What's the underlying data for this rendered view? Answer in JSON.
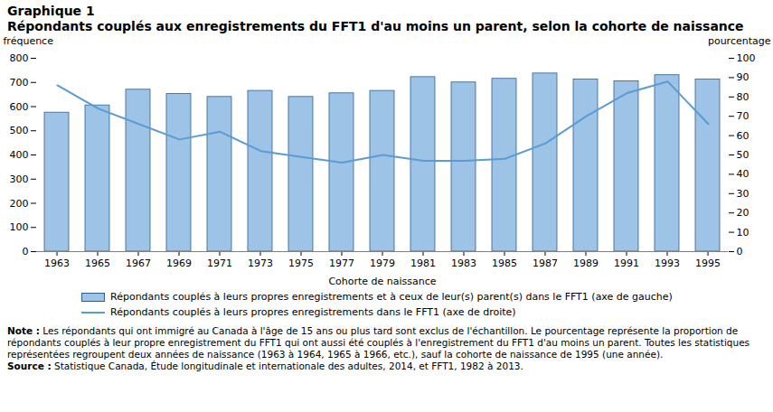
{
  "chart_data": {
    "type": "bar",
    "title": "Graphique 1",
    "subtitle": "Répondants couplés aux enregistrements du FFT1 d'au moins un parent, selon la cohorte de naissance",
    "x_label": "Cohorte de naissance",
    "y_label": "fréquence",
    "y2_label": "pourcentage",
    "categories": [
      "1963",
      "1965",
      "1967",
      "1969",
      "1971",
      "1973",
      "1975",
      "1977",
      "1979",
      "1981",
      "1983",
      "1985",
      "1987",
      "1989",
      "1991",
      "1993",
      "1995"
    ],
    "series": [
      {
        "name": "Répondants couplés à leurs propres enregistrements et à ceux de leur(s) parent(s) dans le FFT1 (axe de gauche)",
        "type": "bar",
        "color": "#9dc3e6",
        "values": [
          575,
          605,
          670,
          652,
          640,
          665,
          640,
          655,
          665,
          722,
          700,
          715,
          737,
          712,
          705,
          730,
          712
        ]
      },
      {
        "name": "Répondants couplés à leurs propres enregistrements dans le FFT1 (axe de droite)",
        "type": "line",
        "color": "#5b9bd5",
        "axis": "y2",
        "values": [
          86,
          74,
          66,
          58,
          62,
          52,
          49,
          46,
          50,
          47,
          47,
          48,
          56,
          70,
          82,
          88,
          66
        ]
      }
    ],
    "ylim": [
      0,
      800
    ],
    "yticks": [
      0,
      100,
      200,
      300,
      400,
      500,
      600,
      700,
      800
    ],
    "y2lim": [
      0,
      100
    ],
    "y2ticks": [
      0,
      10,
      20,
      30,
      40,
      50,
      60,
      70,
      80,
      90,
      100
    ],
    "grid": false,
    "notes": [
      {
        "label": "Note :",
        "text": "Les répondants qui ont immigré au Canada à l'âge de 15 ans ou plus tard sont exclus de l'échantillon. Le pourcentage représente la proportion de répondants couplés à leur propre enregistrement du FFT1 qui ont aussi été couplés à l'enregistrement du FFT1 d'au moins un parent. Toutes les statistiques représentées regroupent deux années de naissance (1963 à 1964, 1965 à 1966, etc.), sauf la cohorte de naissance de 1995 (une année)."
      },
      {
        "label": "Source :",
        "text": "Statistique Canada, Étude longitudinale et internationale des adultes, 2014, et FFT1, 1982 à 2013."
      }
    ]
  }
}
